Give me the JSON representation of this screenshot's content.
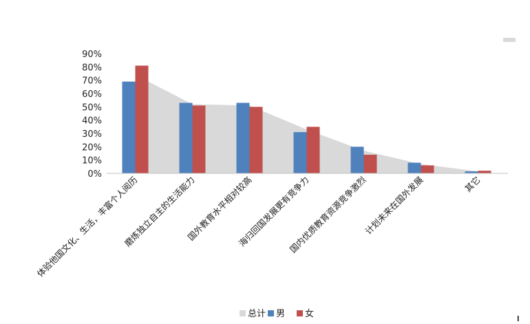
{
  "chart_data": {
    "type": "bar",
    "categories": [
      "体验他国文化、生活，丰富个人阅历",
      "磨炼独立自主的生活能力",
      "国外教育水平相对较高",
      "海归回国发展更有竞争力",
      "国内优质教育资源竞争激烈",
      "计划未来在国外发展",
      "其它"
    ],
    "series": [
      {
        "name": "总计",
        "type": "area",
        "color": "#d9d9d9",
        "values": [
          74,
          52,
          51,
          33,
          17,
          7,
          1.5
        ]
      },
      {
        "name": "男",
        "type": "bar",
        "color": "#4f81bd",
        "values": [
          69,
          53,
          53,
          31,
          20,
          8,
          1.5
        ]
      },
      {
        "name": "女",
        "type": "bar",
        "color": "#c0504d",
        "values": [
          81,
          51,
          50,
          35,
          14,
          6,
          2
        ]
      }
    ],
    "yticks": [
      "0%",
      "10%",
      "20%",
      "30%",
      "40%",
      "50%",
      "60%",
      "70%",
      "80%",
      "90%"
    ],
    "ylim": [
      0,
      90
    ],
    "legend_position": "bottom"
  }
}
